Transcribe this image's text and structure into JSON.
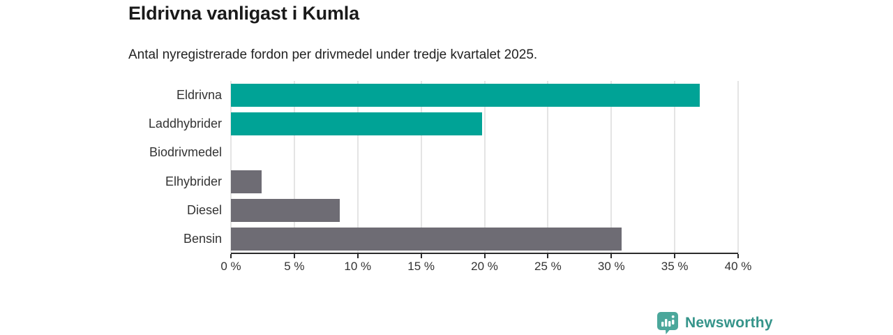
{
  "header": {
    "title": "Eldrivna vanligast i Kumla",
    "subtitle": "Antal nyregistrerade fordon per drivmedel under tredje kvartalet 2025."
  },
  "chart_data": {
    "type": "bar",
    "orientation": "horizontal",
    "title": "Eldrivna vanligast i Kumla",
    "subtitle": "Antal nyregistrerade fordon per drivmedel under tredje kvartalet 2025.",
    "categories": [
      "Eldrivna",
      "Laddhybrider",
      "Biodrivmedel",
      "Elhybrider",
      "Diesel",
      "Bensin"
    ],
    "values": [
      37.0,
      19.8,
      0.0,
      2.4,
      8.6,
      30.8
    ],
    "unit": "%",
    "bar_colors": [
      "#00a396",
      "#00a396",
      "#6e6c74",
      "#6e6c74",
      "#6e6c74",
      "#6e6c74"
    ],
    "xlim": [
      0,
      40
    ],
    "xticks": [
      0,
      5,
      10,
      15,
      20,
      25,
      30,
      35,
      40
    ],
    "xtick_labels": [
      "0 %",
      "5 %",
      "10 %",
      "15 %",
      "20 %",
      "25 %",
      "30 %",
      "35 %",
      "40 %"
    ],
    "grid": true,
    "gridline_color": "#e4e4e4",
    "axis_color": "#2b2b2b",
    "label_color": "#333333",
    "legend": false
  },
  "footer": {
    "brand": "Newsworthy",
    "brand_text_color": "#35948a",
    "brand_icon": "newsworthy-logo-icon",
    "brand_icon_color": "#4ba79b"
  }
}
